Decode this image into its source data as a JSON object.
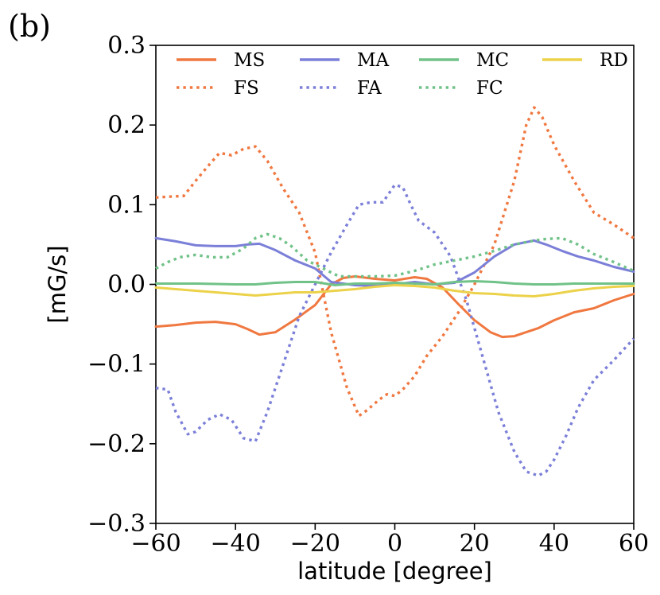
{
  "panel_label": "(b)",
  "chart_data": {
    "type": "line",
    "title": "",
    "xlabel": "latitude [degree]",
    "ylabel": "[mG/s]",
    "xlim": [
      -60,
      60
    ],
    "ylim": [
      -0.3,
      0.3
    ],
    "x_ticks": [
      -60,
      -40,
      -20,
      0,
      20,
      40,
      60
    ],
    "x_tick_labels": [
      "−60",
      "−40",
      "−20",
      "0",
      "20",
      "40",
      "60"
    ],
    "y_ticks": [
      -0.3,
      -0.2,
      -0.1,
      0.0,
      0.1,
      0.2,
      0.3
    ],
    "y_tick_labels": [
      "−0.3",
      "−0.2",
      "−0.1",
      "0.0",
      "0.1",
      "0.2",
      "0.3"
    ],
    "grid": false,
    "legend_position": "top",
    "series": [
      {
        "name": "MS",
        "color": "#f07840",
        "style": "solid",
        "x": [
          -60,
          -55,
          -50,
          -45,
          -40,
          -37,
          -34,
          -30,
          -25,
          -20,
          -16,
          -13,
          -10,
          -5,
          0,
          5,
          8,
          12,
          16,
          20,
          24,
          27,
          30,
          33,
          36,
          40,
          45,
          50,
          55,
          60
        ],
        "y": [
          -0.053,
          -0.051,
          -0.048,
          -0.047,
          -0.05,
          -0.056,
          -0.063,
          -0.06,
          -0.044,
          -0.026,
          0.0,
          0.008,
          0.01,
          0.007,
          0.005,
          0.009,
          0.007,
          -0.004,
          -0.025,
          -0.045,
          -0.06,
          -0.066,
          -0.065,
          -0.06,
          -0.055,
          -0.045,
          -0.035,
          -0.03,
          -0.02,
          -0.012
        ]
      },
      {
        "name": "FS",
        "color": "#f07840",
        "style": "dotted",
        "x": [
          -60,
          -57,
          -53,
          -50,
          -47,
          -44,
          -41,
          -38,
          -35,
          -32,
          -28,
          -24,
          -20,
          -16,
          -12,
          -9,
          -7,
          -4,
          -2,
          0,
          2,
          5,
          8,
          12,
          16,
          20,
          25,
          30,
          33,
          35,
          37,
          40,
          45,
          50,
          55,
          60
        ],
        "y": [
          0.109,
          0.11,
          0.111,
          0.13,
          0.148,
          0.165,
          0.162,
          0.17,
          0.173,
          0.155,
          0.12,
          0.09,
          0.04,
          -0.06,
          -0.13,
          -0.165,
          -0.158,
          -0.145,
          -0.138,
          -0.14,
          -0.132,
          -0.115,
          -0.09,
          -0.065,
          -0.035,
          0.0,
          0.05,
          0.13,
          0.2,
          0.222,
          0.21,
          0.175,
          0.13,
          0.09,
          0.075,
          0.058
        ]
      },
      {
        "name": "MA",
        "color": "#7b7fd8",
        "style": "solid",
        "x": [
          -60,
          -55,
          -50,
          -45,
          -40,
          -37,
          -34,
          -30,
          -25,
          -20,
          -16,
          -10,
          -5,
          0,
          5,
          10,
          15,
          20,
          25,
          30,
          35,
          38,
          42,
          46,
          50,
          55,
          60
        ],
        "y": [
          0.058,
          0.054,
          0.049,
          0.048,
          0.048,
          0.05,
          0.051,
          0.043,
          0.03,
          0.02,
          0.003,
          -0.001,
          -0.002,
          0.0,
          0.003,
          0.0,
          0.002,
          0.015,
          0.035,
          0.05,
          0.055,
          0.05,
          0.042,
          0.035,
          0.03,
          0.022,
          0.016
        ]
      },
      {
        "name": "FA",
        "color": "#7b7fd8",
        "style": "dotted",
        "x": [
          -60,
          -57,
          -55,
          -52,
          -50,
          -47,
          -44,
          -41,
          -38,
          -35,
          -32,
          -28,
          -24,
          -20,
          -16,
          -12,
          -9,
          -6,
          -3,
          0,
          2,
          4,
          6,
          10,
          14,
          18,
          22,
          26,
          30,
          33,
          36,
          38,
          40,
          43,
          46,
          50,
          55,
          60
        ],
        "y": [
          -0.13,
          -0.132,
          -0.16,
          -0.188,
          -0.185,
          -0.17,
          -0.163,
          -0.17,
          -0.193,
          -0.197,
          -0.16,
          -0.1,
          -0.04,
          0.0,
          0.04,
          0.075,
          0.1,
          0.103,
          0.103,
          0.125,
          0.122,
          0.1,
          0.08,
          0.065,
          0.035,
          -0.02,
          -0.09,
          -0.16,
          -0.21,
          -0.235,
          -0.24,
          -0.235,
          -0.22,
          -0.19,
          -0.155,
          -0.12,
          -0.095,
          -0.068
        ]
      },
      {
        "name": "MC",
        "color": "#70c288",
        "style": "solid",
        "x": [
          -60,
          -50,
          -40,
          -35,
          -30,
          -25,
          -20,
          -15,
          -10,
          -5,
          0,
          5,
          10,
          15,
          20,
          25,
          30,
          35,
          40,
          45,
          50,
          55,
          60
        ],
        "y": [
          0.001,
          0.001,
          0.0,
          0.0,
          0.002,
          0.003,
          0.003,
          -0.001,
          0.001,
          0.001,
          0.002,
          0.001,
          0.0,
          0.003,
          0.004,
          0.003,
          0.001,
          0.0,
          0.0,
          0.001,
          0.001,
          0.001,
          0.001
        ]
      },
      {
        "name": "FC",
        "color": "#70c288",
        "style": "dotted",
        "x": [
          -60,
          -57,
          -54,
          -50,
          -46,
          -42,
          -38,
          -35,
          -32,
          -29,
          -26,
          -22,
          -18,
          -14,
          -10,
          -5,
          0,
          5,
          10,
          15,
          20,
          25,
          30,
          35,
          38,
          42,
          46,
          50,
          55,
          60
        ],
        "y": [
          0.02,
          0.028,
          0.034,
          0.037,
          0.034,
          0.034,
          0.045,
          0.058,
          0.063,
          0.058,
          0.048,
          0.03,
          0.02,
          0.01,
          0.01,
          0.01,
          0.011,
          0.017,
          0.025,
          0.03,
          0.035,
          0.042,
          0.05,
          0.055,
          0.057,
          0.058,
          0.05,
          0.038,
          0.028,
          0.017
        ]
      },
      {
        "name": "RD",
        "color": "#ecd24a",
        "style": "solid",
        "x": [
          -60,
          -55,
          -50,
          -45,
          -40,
          -35,
          -30,
          -25,
          -20,
          -15,
          -10,
          -5,
          0,
          5,
          10,
          15,
          20,
          25,
          30,
          35,
          40,
          45,
          50,
          55,
          60
        ],
        "y": [
          -0.004,
          -0.006,
          -0.008,
          -0.01,
          -0.012,
          -0.014,
          -0.012,
          -0.01,
          -0.01,
          -0.008,
          -0.006,
          -0.003,
          -0.001,
          -0.002,
          -0.004,
          -0.008,
          -0.011,
          -0.012,
          -0.014,
          -0.015,
          -0.012,
          -0.008,
          -0.005,
          -0.003,
          -0.002
        ]
      }
    ]
  }
}
